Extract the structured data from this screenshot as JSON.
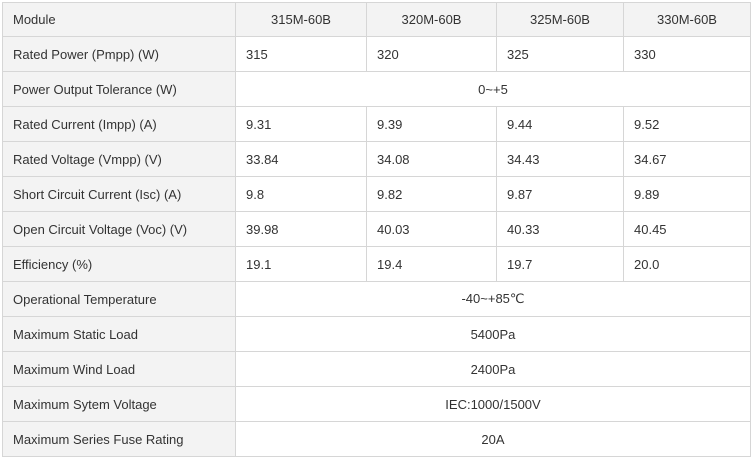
{
  "header": {
    "module": "Module",
    "models": [
      "315M-60B",
      "320M-60B",
      "325M-60B",
      "330M-60B"
    ]
  },
  "rows": [
    {
      "label": "Rated Power (Pmpp) (W)",
      "values": [
        "315",
        "320",
        "325",
        "330"
      ]
    },
    {
      "label": "Power Output Tolerance (W)",
      "span": "0~+5"
    },
    {
      "label": "Rated Current (Impp) (A)",
      "values": [
        "9.31",
        "9.39",
        "9.44",
        "9.52"
      ]
    },
    {
      "label": "Rated Voltage (Vmpp) (V)",
      "values": [
        "33.84",
        "34.08",
        "34.43",
        "34.67"
      ]
    },
    {
      "label": "Short Circuit Current (Isc) (A)",
      "values": [
        "9.8",
        "9.82",
        "9.87",
        "9.89"
      ]
    },
    {
      "label": "Open Circuit Voltage (Voc) (V)",
      "values": [
        "39.98",
        "40.03",
        "40.33",
        "40.45"
      ]
    },
    {
      "label": "Efficiency (%)",
      "values": [
        "19.1",
        "19.4",
        "19.7",
        "20.0"
      ]
    },
    {
      "label": "Operational Temperature",
      "span": "-40~+85℃"
    },
    {
      "label": "Maximum Static Load",
      "span": "5400Pa"
    },
    {
      "label": "Maximum Wind Load",
      "span": "2400Pa"
    },
    {
      "label": "Maximum Sytem Voltage",
      "span": "IEC:1000/1500V"
    },
    {
      "label": "Maximum Series Fuse Rating",
      "span": "20A"
    }
  ]
}
